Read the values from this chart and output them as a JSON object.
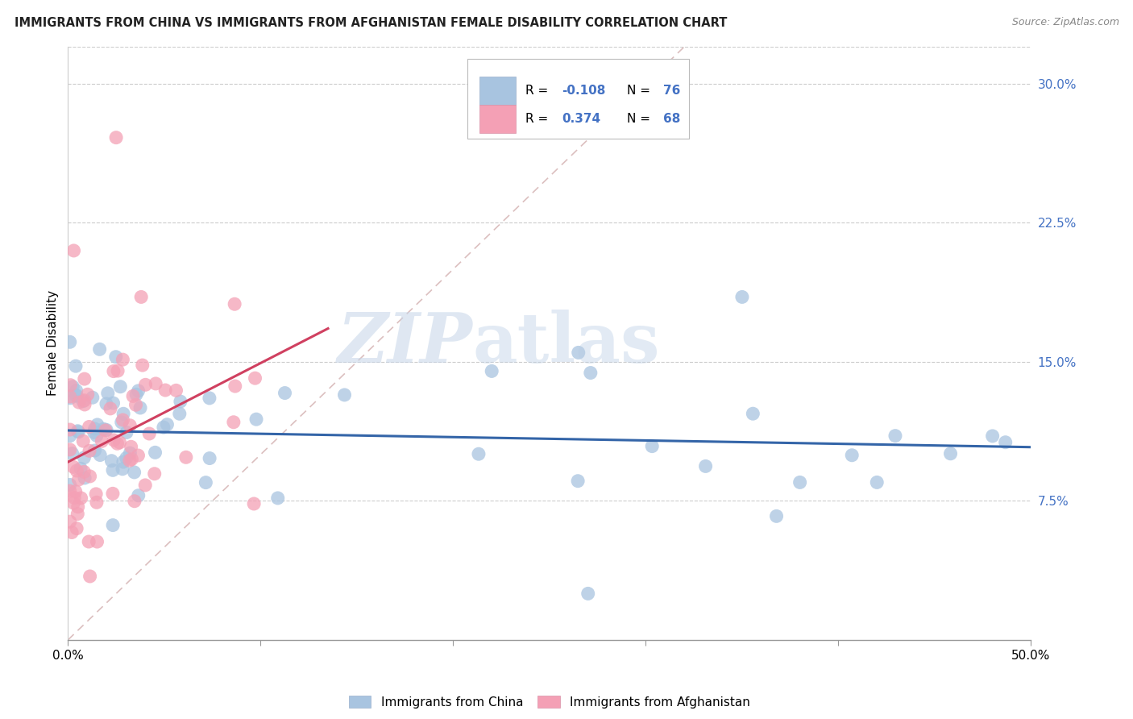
{
  "title": "IMMIGRANTS FROM CHINA VS IMMIGRANTS FROM AFGHANISTAN FEMALE DISABILITY CORRELATION CHART",
  "source": "Source: ZipAtlas.com",
  "ylabel": "Female Disability",
  "xlim": [
    0.0,
    0.5
  ],
  "ylim": [
    0.0,
    0.32
  ],
  "legend_r_china": "-0.108",
  "legend_n_china": "76",
  "legend_r_afghan": "0.374",
  "legend_n_afghan": "68",
  "china_color": "#a8c4e0",
  "afghan_color": "#f4a0b5",
  "china_line_color": "#3465a8",
  "afghan_line_color": "#d04060",
  "ref_line_color": "#d8b8b8",
  "legend_label_china": "Immigrants from China",
  "legend_label_afghan": "Immigrants from Afghanistan",
  "watermark_zip": "ZIP",
  "watermark_atlas": "atlas",
  "background_color": "#ffffff",
  "grid_color": "#cccccc",
  "blue_text": "#4472c4",
  "title_color": "#222222",
  "source_color": "#888888",
  "china_trend_x0": 0.0,
  "china_trend_y0": 0.113,
  "china_trend_x1": 0.5,
  "china_trend_y1": 0.104,
  "afghan_trend_x0": 0.0,
  "afghan_trend_y0": 0.096,
  "afghan_trend_x1": 0.135,
  "afghan_trend_y1": 0.168
}
